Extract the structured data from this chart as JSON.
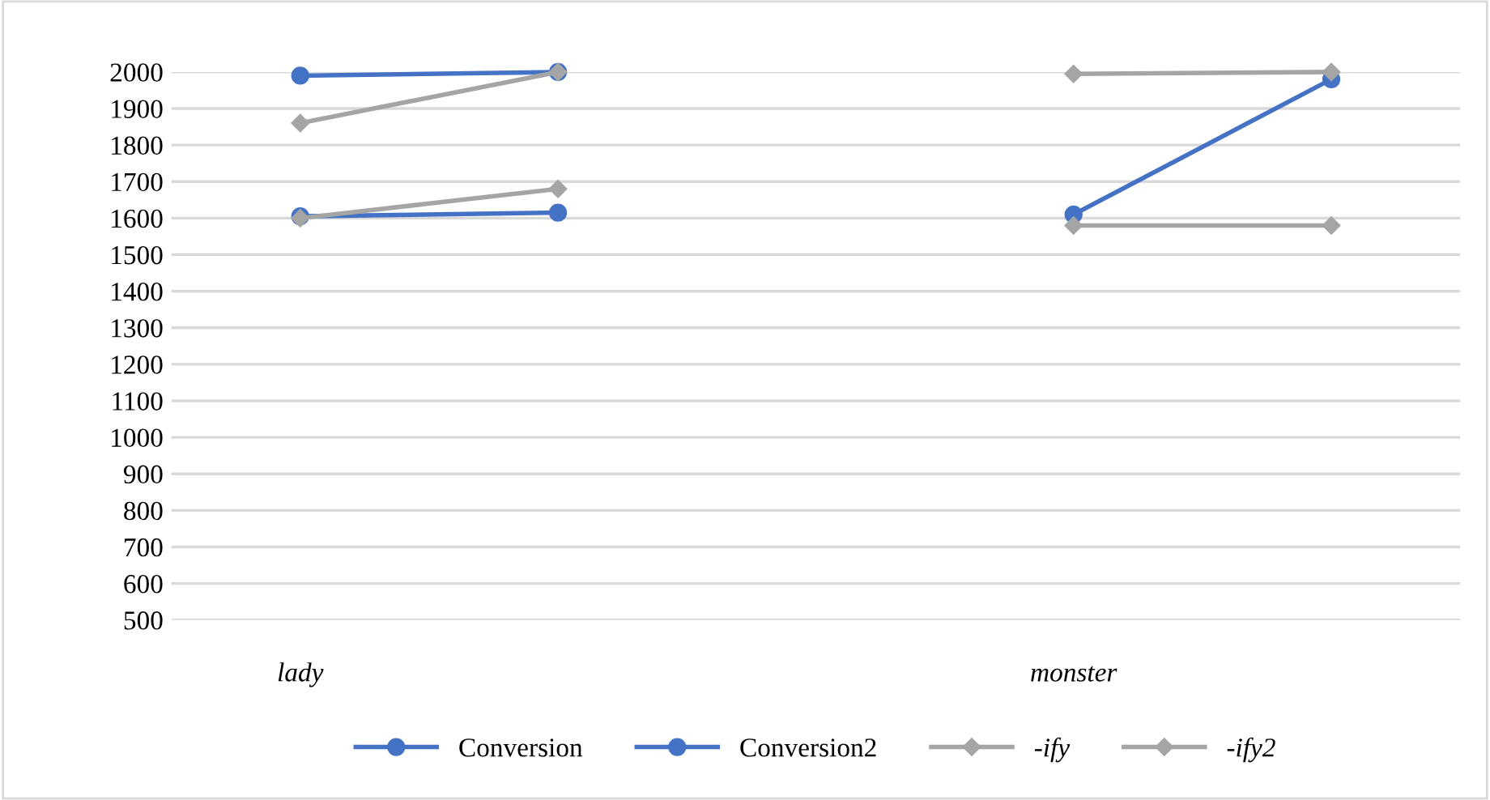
{
  "chart_data": {
    "type": "line",
    "categories": [
      "lady",
      null,
      null,
      "monster",
      null
    ],
    "series": [
      {
        "name": "Conversion",
        "color": "#4472c4",
        "marker": "circle",
        "values": [
          1990,
          2000,
          null,
          1610,
          1980
        ]
      },
      {
        "name": "Conversion2",
        "color": "#4472c4",
        "marker": "circle",
        "values": [
          1605,
          1615,
          null,
          null,
          null
        ]
      },
      {
        "name": "-ify",
        "color": "#a5a5a5",
        "marker": "diamond",
        "values": [
          1860,
          2000,
          null,
          1995,
          2000
        ]
      },
      {
        "name": "-ify2",
        "color": "#a5a5a5",
        "marker": "diamond",
        "values": [
          1600,
          1680,
          null,
          1580,
          1580
        ]
      }
    ],
    "ylim": [
      500,
      2000
    ],
    "yticks": [
      500,
      600,
      700,
      800,
      900,
      1000,
      1100,
      1200,
      1300,
      1400,
      1500,
      1600,
      1700,
      1800,
      1900,
      2000
    ],
    "grid": "y",
    "legend": "bottom",
    "line_style": "solid"
  }
}
